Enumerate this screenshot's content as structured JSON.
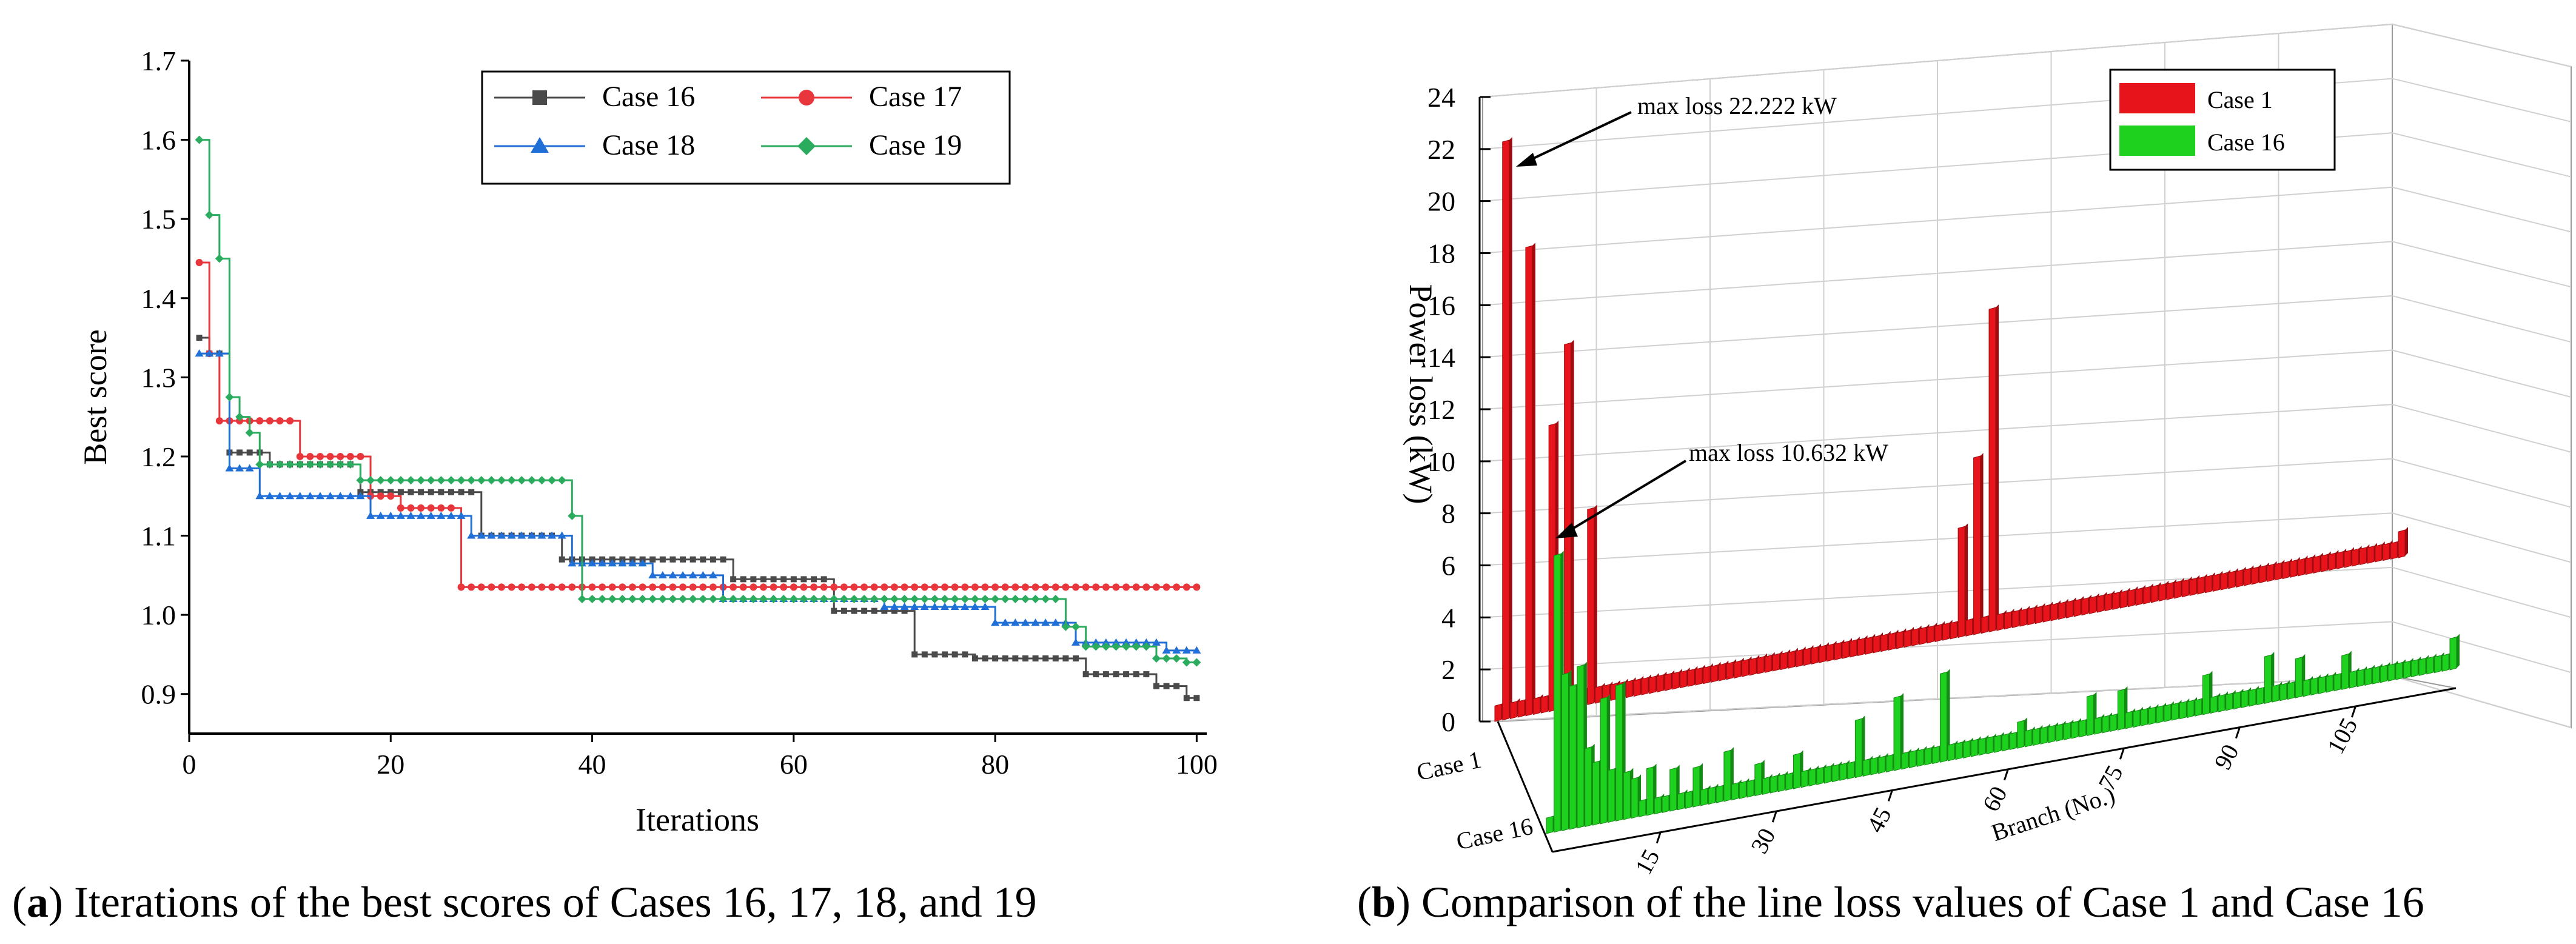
{
  "figure": {
    "panel_a": {
      "caption_letter": "a",
      "caption_text": " Iterations of the best scores of Cases 16, 17, 18, and 19"
    },
    "panel_b": {
      "caption_letter": "b",
      "caption_text": " Comparison of the line loss values of Case 1 and Case 16"
    }
  },
  "chart_data": [
    {
      "type": "line",
      "title": "",
      "xlabel": "Iterations",
      "ylabel": "Best score",
      "xlim": [
        0,
        101
      ],
      "ylim": [
        0.85,
        1.7
      ],
      "xticks": [
        0,
        20,
        40,
        60,
        80,
        100
      ],
      "xtick_labels": [
        "0",
        "20",
        "40",
        "60",
        "80",
        "100"
      ],
      "yticks": [
        0.9,
        1.0,
        1.1,
        1.2,
        1.3,
        1.4,
        1.5,
        1.6,
        1.7
      ],
      "ytick_labels": [
        "0.9",
        "1.0",
        "1.1",
        "1.2",
        "1.3",
        "1.4",
        "1.5",
        "1.6",
        "1.7"
      ],
      "legend_position": "top-right",
      "series": [
        {
          "name": "Case 16",
          "color": "#4a4a4a",
          "marker": "square",
          "steps": [
            [
              1,
              1.35
            ],
            [
              2,
              1.33
            ],
            [
              4,
              1.205
            ],
            [
              8,
              1.19
            ],
            [
              17,
              1.155
            ],
            [
              29,
              1.1
            ],
            [
              37,
              1.07
            ],
            [
              42,
              1.07
            ],
            [
              54,
              1.045
            ],
            [
              64,
              1.005
            ],
            [
              72,
              0.95
            ],
            [
              78,
              0.945
            ],
            [
              89,
              0.925
            ],
            [
              96,
              0.91
            ],
            [
              99,
              0.895
            ],
            [
              100,
              0.895
            ]
          ]
        },
        {
          "name": "Case 17",
          "color": "#e8373c",
          "marker": "circle",
          "steps": [
            [
              1,
              1.445
            ],
            [
              2,
              1.33
            ],
            [
              3,
              1.245
            ],
            [
              11,
              1.2
            ],
            [
              18,
              1.15
            ],
            [
              21,
              1.135
            ],
            [
              27,
              1.035
            ],
            [
              100,
              1.035
            ]
          ]
        },
        {
          "name": "Case 18",
          "color": "#1f6fd6",
          "marker": "triangle",
          "steps": [
            [
              1,
              1.33
            ],
            [
              4,
              1.185
            ],
            [
              7,
              1.15
            ],
            [
              18,
              1.125
            ],
            [
              28,
              1.1
            ],
            [
              38,
              1.065
            ],
            [
              46,
              1.05
            ],
            [
              53,
              1.02
            ],
            [
              69,
              1.01
            ],
            [
              80,
              0.99
            ],
            [
              88,
              0.965
            ],
            [
              97,
              0.955
            ],
            [
              100,
              0.955
            ]
          ]
        },
        {
          "name": "Case 19",
          "color": "#2bab5e",
          "marker": "diamond",
          "steps": [
            [
              1,
              1.6
            ],
            [
              2,
              1.505
            ],
            [
              3,
              1.45
            ],
            [
              4,
              1.275
            ],
            [
              5,
              1.25
            ],
            [
              6,
              1.23
            ],
            [
              7,
              1.19
            ],
            [
              17,
              1.17
            ],
            [
              38,
              1.125
            ],
            [
              39,
              1.02
            ],
            [
              70,
              1.02
            ],
            [
              87,
              0.985
            ],
            [
              89,
              0.96
            ],
            [
              96,
              0.945
            ],
            [
              99,
              0.94
            ],
            [
              100,
              0.94
            ]
          ]
        }
      ]
    },
    {
      "type": "bar3d",
      "title": "",
      "xlabel": "Branch (No.)",
      "ylabel": "Power loss (kW)",
      "categories_depth": [
        "Case 1",
        "Case 16"
      ],
      "xlim": [
        1,
        118
      ],
      "zlim": [
        0,
        24
      ],
      "zticks": [
        0,
        2,
        4,
        6,
        8,
        10,
        12,
        14,
        16,
        18,
        20,
        22,
        24
      ],
      "ztick_labels": [
        "0",
        "2",
        "4",
        "6",
        "8",
        "10",
        "12",
        "14",
        "16",
        "18",
        "20",
        "22",
        "24"
      ],
      "xticks": [
        15,
        30,
        45,
        60,
        75,
        90,
        105
      ],
      "xtick_labels": [
        "15",
        "30",
        "45",
        "60",
        "75",
        "90",
        "105"
      ],
      "legend_position": "top-right",
      "annotations": [
        {
          "text": "max loss 22.222 kW",
          "series": "Case 1",
          "branch": 2,
          "value": 22.222
        },
        {
          "text": "max loss 10.632 kW",
          "series": "Case 16",
          "branch": 2,
          "value": 10.632
        }
      ],
      "series": [
        {
          "name": "Case 1",
          "color": "#e8141b",
          "values": [
            0,
            22.222,
            0,
            0,
            18,
            0,
            0,
            11,
            0,
            14,
            0,
            0,
            7.5,
            0,
            0,
            0,
            0,
            0,
            0,
            0,
            0,
            0,
            0,
            0,
            0,
            0,
            0,
            0,
            0,
            0,
            0,
            0,
            0,
            0,
            0,
            0,
            0,
            0,
            0,
            0,
            0,
            0,
            0,
            0,
            0,
            0,
            0,
            0,
            0,
            0,
            0,
            0,
            0,
            0,
            0,
            0,
            0,
            0,
            0,
            0,
            4.2,
            0,
            6.8,
            0,
            12.4,
            0,
            0,
            0,
            0,
            0,
            0,
            0,
            0,
            0,
            0,
            0,
            0,
            0,
            0,
            0,
            0,
            0,
            0,
            0,
            0,
            0,
            0,
            0,
            0,
            0,
            0,
            0,
            0,
            0,
            0,
            0,
            0,
            0,
            0,
            0,
            0,
            0,
            0,
            0,
            0,
            0,
            0,
            0,
            0,
            0,
            0,
            0,
            0,
            0,
            0,
            0,
            0,
            1.0
          ],
          "baseline": 0.6
        },
        {
          "name": "Case 16",
          "color": "#1fd11f",
          "values": [
            0,
            10.632,
            0,
            0,
            6.2,
            0,
            0,
            4.8,
            0,
            5.2,
            0,
            0,
            0,
            0,
            0,
            0,
            0,
            0,
            0,
            0,
            0,
            0,
            0,
            0,
            0,
            0,
            0,
            0,
            0,
            0,
            0,
            0,
            0,
            0,
            0,
            0,
            0,
            0,
            0,
            0,
            0,
            0,
            0,
            0,
            0,
            0,
            0,
            0,
            0,
            0,
            0,
            0,
            0,
            0,
            0,
            0,
            0,
            0,
            0,
            0,
            0,
            0,
            0,
            0,
            0,
            0,
            0,
            0,
            0,
            0,
            0,
            0,
            0,
            0,
            0,
            0,
            0,
            0,
            0,
            0,
            0,
            0,
            0,
            0,
            0,
            0,
            0,
            0,
            0,
            0,
            0,
            0,
            0,
            0,
            0,
            0,
            0,
            0,
            0,
            0,
            0,
            0,
            0,
            0,
            0,
            0,
            0,
            0,
            0,
            0,
            0,
            0,
            0,
            0,
            0,
            0,
            0,
            1.2
          ],
          "secondary": [
            [
              3,
              6.0
            ],
            [
              4,
              5.5
            ],
            [
              5,
              4.5
            ],
            [
              6,
              3.0
            ],
            [
              7,
              2.4
            ],
            [
              8,
              2.8
            ],
            [
              9,
              2.0
            ],
            [
              10,
              2.6
            ],
            [
              11,
              1.8
            ],
            [
              12,
              1.5
            ],
            [
              14,
              1.8
            ],
            [
              17,
              1.6
            ],
            [
              20,
              1.5
            ],
            [
              24,
              1.9
            ],
            [
              28,
              1.2
            ],
            [
              33,
              1.3
            ],
            [
              41,
              2.2
            ],
            [
              46,
              2.8
            ],
            [
              52,
              3.4
            ],
            [
              62,
              1.0
            ],
            [
              71,
              1.5
            ],
            [
              75,
              1.5
            ],
            [
              86,
              1.5
            ],
            [
              94,
              1.8
            ],
            [
              98,
              1.5
            ],
            [
              104,
              1.3
            ]
          ],
          "baseline": 0.6
        }
      ]
    }
  ]
}
